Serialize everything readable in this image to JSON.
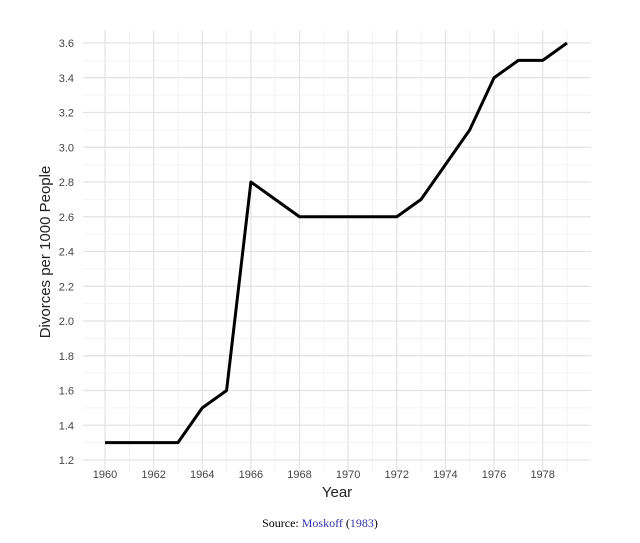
{
  "chart_data": {
    "type": "line",
    "title": "",
    "xlabel": "Year",
    "ylabel": "Divorces per 1000 People",
    "xlim": [
      1959,
      1980
    ],
    "ylim": [
      1.2,
      3.6
    ],
    "xticks": [
      1960,
      1962,
      1964,
      1966,
      1968,
      1970,
      1972,
      1974,
      1976,
      1978
    ],
    "yticks": [
      1.2,
      1.4,
      1.6,
      1.8,
      2.0,
      2.2,
      2.4,
      2.6,
      2.8,
      3.0,
      3.2,
      3.4,
      3.6
    ],
    "grid": true,
    "line_color": "#000000",
    "x": [
      1960,
      1961,
      1962,
      1963,
      1964,
      1965,
      1966,
      1967,
      1968,
      1969,
      1970,
      1971,
      1972,
      1973,
      1974,
      1975,
      1976,
      1977,
      1978,
      1979
    ],
    "y": [
      1.3,
      1.3,
      1.3,
      1.3,
      1.5,
      1.6,
      2.8,
      2.7,
      2.6,
      2.6,
      2.6,
      2.6,
      2.6,
      2.7,
      2.9,
      3.1,
      3.4,
      3.5,
      3.5,
      3.6
    ]
  },
  "caption": {
    "prefix": "Source:",
    "author": "Moskoff",
    "open": "(",
    "year": "1983",
    "close": ")",
    "link_color": "#3333aa"
  }
}
